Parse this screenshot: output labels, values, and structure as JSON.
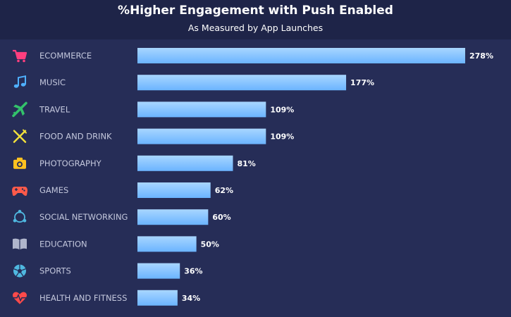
{
  "header": {
    "title": "%Higher Engagement with Push Enabled",
    "subtitle": "As Measured by App Launches"
  },
  "colors": {
    "bar_top": "#a8d6ff",
    "bar_bottom": "#6bb4ff",
    "label": "#c3c7dc",
    "value": "#ffffff"
  },
  "chart_data": {
    "type": "bar",
    "orientation": "horizontal",
    "title": "%Higher Engagement with Push Enabled",
    "subtitle": "As Measured by App Launches",
    "xlabel": "",
    "ylabel": "",
    "categories": [
      "ECOMMERCE",
      "MUSIC",
      "TRAVEL",
      "FOOD AND DRINK",
      "PHOTOGRAPHY",
      "GAMES",
      "SOCIAL NETWORKING",
      "EDUCATION",
      "SPORTS",
      "HEALTH AND FITNESS"
    ],
    "values": [
      278,
      177,
      109,
      109,
      81,
      62,
      60,
      50,
      36,
      34
    ],
    "value_labels": [
      "278%",
      "177%",
      "109%",
      "109%",
      "81%",
      "62%",
      "60%",
      "50%",
      "36%",
      "34%"
    ],
    "xlim": [
      0,
      278
    ],
    "grid": false,
    "icons": [
      {
        "name": "cart-icon",
        "color": "#ff3f7f"
      },
      {
        "name": "music-note-icon",
        "color": "#4fb0ff"
      },
      {
        "name": "airplane-icon",
        "color": "#33c26b"
      },
      {
        "name": "fork-knife-icon",
        "color": "#f2e13b"
      },
      {
        "name": "camera-icon",
        "color": "#ffc21f"
      },
      {
        "name": "gamepad-icon",
        "color": "#ff5a4a"
      },
      {
        "name": "network-icon",
        "color": "#4fb8e0"
      },
      {
        "name": "book-icon",
        "color": "#b0b6cc"
      },
      {
        "name": "soccer-ball-icon",
        "color": "#4fb8e0"
      },
      {
        "name": "heart-pulse-icon",
        "color": "#ff4a4a"
      }
    ]
  }
}
